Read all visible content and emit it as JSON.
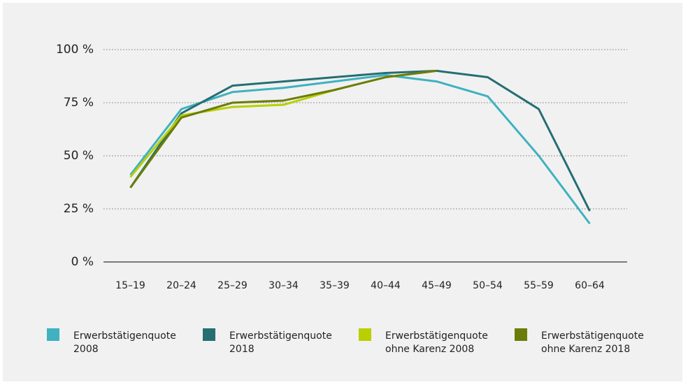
{
  "chart_data": {
    "type": "line",
    "categories": [
      "15–19",
      "20–24",
      "25–29",
      "30–34",
      "35–39",
      "40–44",
      "45–49",
      "50–54",
      "55–59",
      "60–64"
    ],
    "series": [
      {
        "name": "Erwerbstätigenquote 2008",
        "color": "#3fb1c0",
        "values": [
          41,
          72,
          80,
          82,
          85,
          88,
          85,
          78,
          50,
          18
        ]
      },
      {
        "name": "Erwerbstätigenquote 2018",
        "color": "#256e72",
        "values": [
          35,
          70,
          83,
          85,
          87,
          89,
          90,
          87,
          72,
          24
        ]
      },
      {
        "name": "Erwerbstätigenquote ohne Karenz 2008",
        "color": "#b9cf00",
        "values": [
          40,
          69,
          73,
          74,
          81,
          87,
          90,
          null,
          null,
          null
        ]
      },
      {
        "name": "Erwerbstätigenquote ohne Karenz 2018",
        "color": "#6b7c0a",
        "values": [
          35,
          68,
          75,
          76,
          81,
          87,
          90,
          null,
          null,
          null
        ]
      }
    ],
    "ylim": [
      0,
      100
    ],
    "yticks": [
      {
        "value": 0,
        "label": "0 %"
      },
      {
        "value": 25,
        "label": "25 %"
      },
      {
        "value": 50,
        "label": "50 %"
      },
      {
        "value": 75,
        "label": "75 %"
      },
      {
        "value": 100,
        "label": "100 %"
      }
    ],
    "grid": true
  }
}
